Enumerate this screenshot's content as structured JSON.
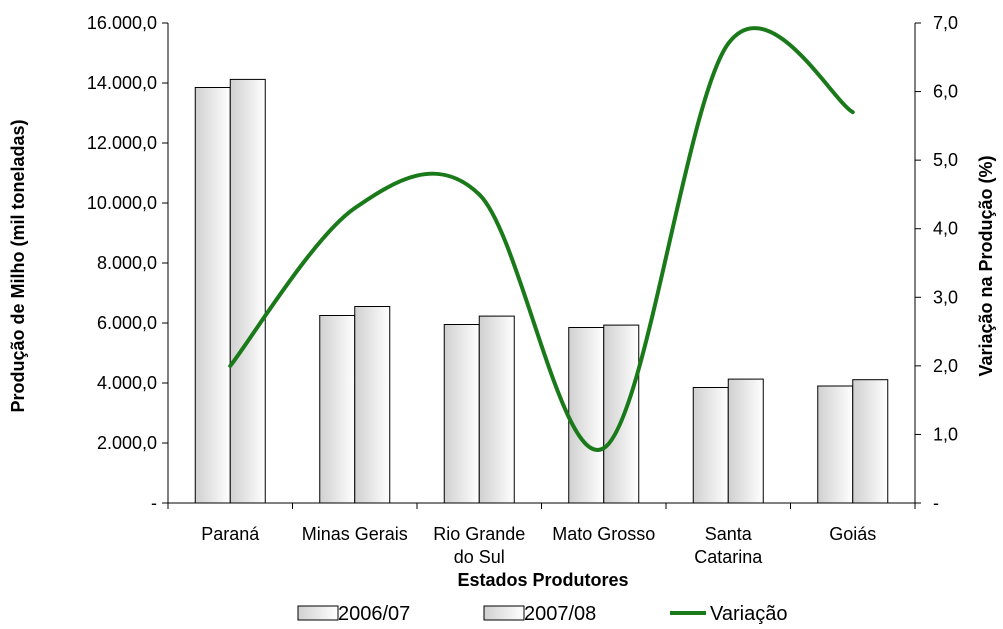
{
  "chart_data": {
    "type": "bar",
    "categories": [
      [
        "Paraná"
      ],
      [
        "Minas Gerais"
      ],
      [
        "Rio Grande",
        "do Sul"
      ],
      [
        "Mato Grosso"
      ],
      [
        "Santa",
        "Catarina"
      ],
      [
        "Goiás"
      ]
    ],
    "series": [
      {
        "name": "2006/07",
        "type": "bar",
        "axis": "left",
        "values": [
          13850,
          6250,
          5950,
          5850,
          3850,
          3900
        ]
      },
      {
        "name": "2007/08",
        "type": "bar",
        "axis": "left",
        "values": [
          14120,
          6550,
          6230,
          5930,
          4130,
          4110
        ]
      },
      {
        "name": "Variação",
        "type": "line",
        "axis": "right",
        "smooth": true,
        "values": [
          2.0,
          4.3,
          4.5,
          0.8,
          6.7,
          5.7
        ]
      }
    ],
    "xlabel": "Estados Produtores",
    "ylabel": "Produção de Milho (mil toneladas)",
    "y2label": "Variação na Produção (%)",
    "ylim": [
      0,
      16000
    ],
    "y2lim": [
      0,
      7
    ],
    "yticks": [
      "-",
      "2.000,0",
      "4.000,0",
      "6.000,0",
      "8.000,0",
      "10.000,0",
      "12.000,0",
      "14.000,0",
      "16.000,0"
    ],
    "y2ticks": [
      "-",
      "1,0",
      "2,0",
      "3,0",
      "4,0",
      "5,0",
      "6,0",
      "7,0"
    ],
    "legend_position": "bottom",
    "colors": {
      "line": "#1a7a1a",
      "bar_stroke": "#000000",
      "bar_fill_light": "#ffffff",
      "bar_fill_dark": "#d0d0d0"
    },
    "grid": false
  }
}
